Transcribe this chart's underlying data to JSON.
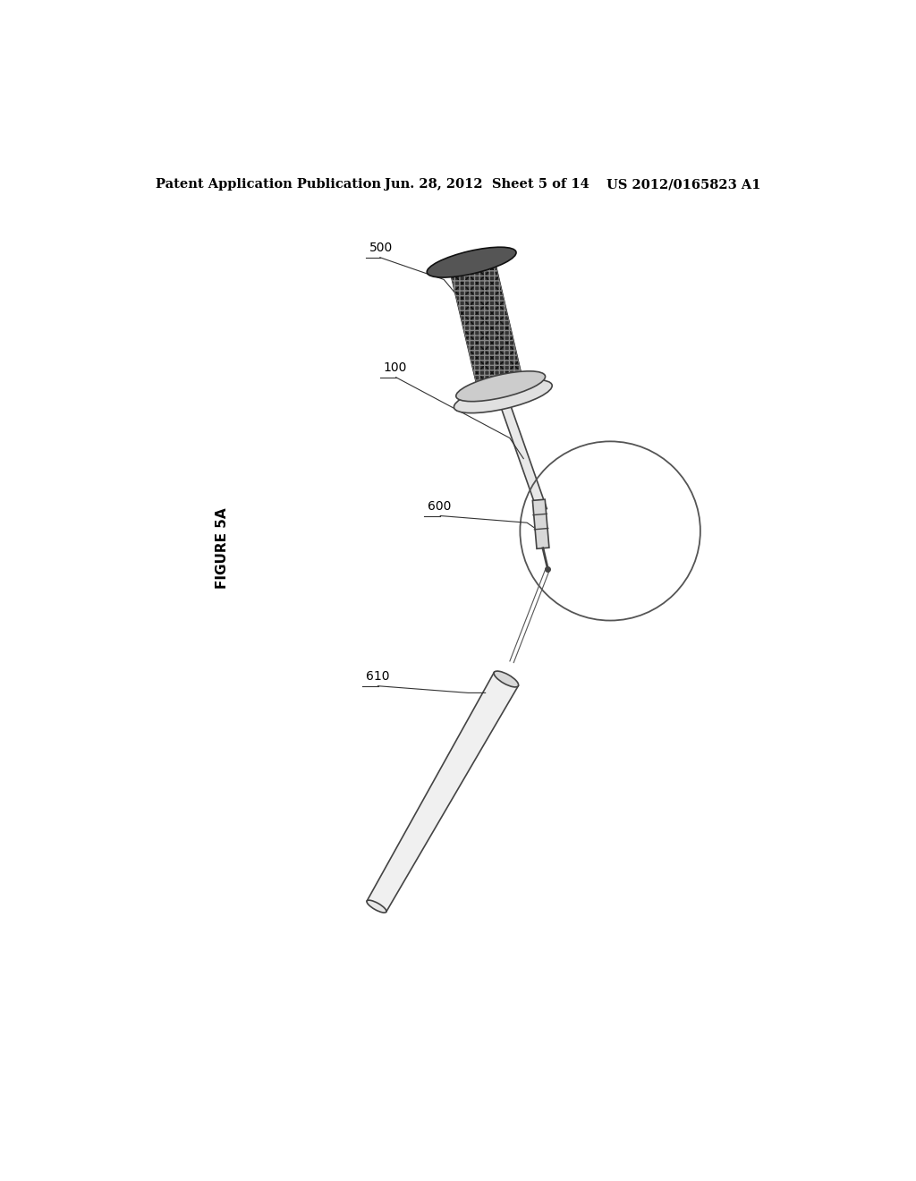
{
  "header_left": "Patent Application Publication",
  "header_mid": "Jun. 28, 2012  Sheet 5 of 14",
  "header_right": "US 2012/0165823 A1",
  "figure_label": "FIGURE 5A",
  "bg_color": "#ffffff",
  "label_500": "500",
  "label_100": "100",
  "label_600": "600",
  "label_610": "610",
  "line_color": "#444444",
  "handle_color": "#222222",
  "shaft_color": "#aaaaaa",
  "implant_color": "#dddddd"
}
